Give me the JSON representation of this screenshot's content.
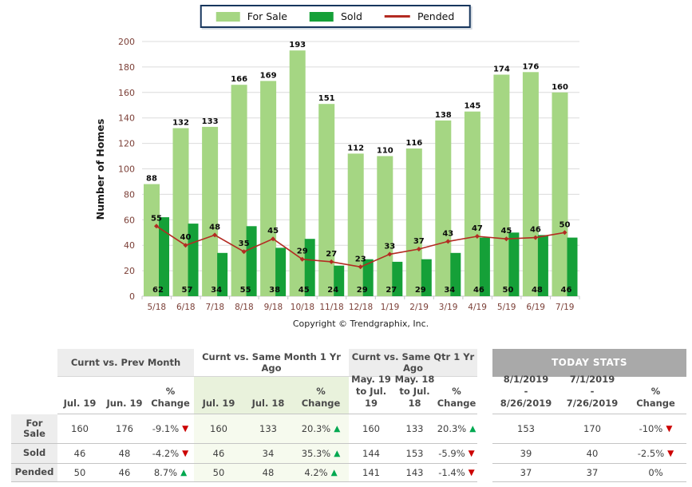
{
  "legend": {
    "items": [
      {
        "label": "For Sale",
        "color": "#a5d683",
        "type": "swatch"
      },
      {
        "label": "Sold",
        "color": "#15a038",
        "type": "swatch"
      },
      {
        "label": "Pended",
        "color": "#b32b22",
        "type": "line"
      }
    ]
  },
  "chart_data": {
    "type": "bar",
    "ylabel": "Number of Homes",
    "ylim": [
      0,
      200
    ],
    "ytick_step": 20,
    "grid": true,
    "legend_position": "top-center",
    "categories": [
      "5/18",
      "6/18",
      "7/18",
      "8/18",
      "9/18",
      "10/18",
      "11/18",
      "12/18",
      "1/19",
      "2/19",
      "3/19",
      "4/19",
      "5/19",
      "6/19",
      "7/19"
    ],
    "series": [
      {
        "name": "For Sale",
        "type": "bar",
        "color": "#a5d683",
        "values": [
          88,
          132,
          133,
          166,
          169,
          193,
          151,
          112,
          110,
          116,
          138,
          145,
          174,
          176,
          160
        ]
      },
      {
        "name": "Sold",
        "type": "bar",
        "color": "#15a038",
        "values": [
          62,
          57,
          34,
          55,
          38,
          45,
          24,
          29,
          27,
          29,
          34,
          46,
          50,
          48,
          46
        ]
      },
      {
        "name": "Pended",
        "type": "line",
        "color": "#b32b22",
        "values": [
          55,
          40,
          48,
          35,
          45,
          29,
          27,
          23,
          33,
          37,
          43,
          47,
          45,
          46,
          50
        ]
      }
    ],
    "copyright": "Copyright © Trendgraphix, Inc."
  },
  "colors": {
    "up_arrow": "#00a850",
    "down_arrow": "#cc0000",
    "today_header_bg": "#a9a9a9",
    "tint_header": "#e9f2dc",
    "tint_cell": "#f6faee",
    "axis_label": "#7c4038"
  },
  "stats_table": {
    "row_labels": [
      "For Sale",
      "Sold",
      "Pended"
    ],
    "groups": [
      {
        "title": "Curnt vs. Prev Month",
        "columns": [
          "Jul. 19",
          "Jun. 19",
          "%\nChange"
        ],
        "rows": [
          {
            "a": "160",
            "b": "176",
            "change": "-9.1%",
            "dir": "down"
          },
          {
            "a": "46",
            "b": "48",
            "change": "-4.2%",
            "dir": "down"
          },
          {
            "a": "50",
            "b": "46",
            "change": "8.7%",
            "dir": "up"
          }
        ]
      },
      {
        "title": "Curnt vs. Same Month 1 Yr Ago",
        "columns": [
          "Jul. 19",
          "Jul. 18",
          "%\nChange"
        ],
        "rows": [
          {
            "a": "160",
            "b": "133",
            "change": "20.3%",
            "dir": "up"
          },
          {
            "a": "46",
            "b": "34",
            "change": "35.3%",
            "dir": "up"
          },
          {
            "a": "50",
            "b": "48",
            "change": "4.2%",
            "dir": "up"
          }
        ]
      },
      {
        "title": "Curnt vs. Same Qtr 1 Yr Ago",
        "columns": [
          "May. 19\nto Jul.\n19",
          "May. 18\nto Jul.\n18",
          "%\nChange"
        ],
        "rows": [
          {
            "a": "160",
            "b": "133",
            "change": "20.3%",
            "dir": "up"
          },
          {
            "a": "144",
            "b": "153",
            "change": "-5.9%",
            "dir": "down"
          },
          {
            "a": "141",
            "b": "143",
            "change": "-1.4%",
            "dir": "down"
          }
        ]
      },
      {
        "title": "TODAY STATS",
        "columns": [
          "8/1/2019\n-\n8/26/2019",
          "7/1/2019\n-\n7/26/2019",
          "%\nChange"
        ],
        "rows": [
          {
            "a": "153",
            "b": "170",
            "change": "-10%",
            "dir": "down"
          },
          {
            "a": "39",
            "b": "40",
            "change": "-2.5%",
            "dir": "down"
          },
          {
            "a": "37",
            "b": "37",
            "change": "0%",
            "dir": "none"
          }
        ]
      }
    ]
  }
}
